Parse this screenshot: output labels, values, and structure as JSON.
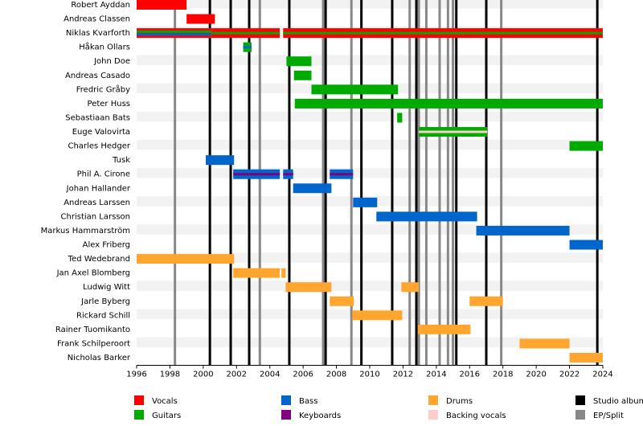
{
  "chart_data": {
    "type": "timeline",
    "xlim": [
      1996,
      2024
    ],
    "xticks": [
      1996,
      1998,
      2000,
      2002,
      2004,
      2006,
      2008,
      2010,
      2012,
      2014,
      2016,
      2018,
      2020,
      2022,
      2024
    ],
    "roles": [
      {
        "name": "Vocals",
        "color": "#ff0000"
      },
      {
        "name": "Guitars",
        "color": "#00aa00"
      },
      {
        "name": "Bass",
        "color": "#0066cc"
      },
      {
        "name": "Keyboards",
        "color": "#800080"
      },
      {
        "name": "Drums",
        "color": "#ffa530"
      },
      {
        "name": "Backing vocals",
        "color": "#ffcccc"
      }
    ],
    "releases": [
      {
        "name": "Studio album",
        "color": "#000000",
        "years": [
          2000.4,
          2001.65,
          2002.76,
          2005.17,
          2007.35,
          2009.5,
          2011.35,
          2012.8,
          2015.2,
          2017.0,
          2023.67
        ]
      },
      {
        "name": "EP/Split",
        "color": "#888888",
        "years": [
          1998.3,
          2003.4,
          2007.2,
          2008.9,
          2012.4,
          2012.95,
          2013.4,
          2014.2,
          2014.7,
          2015.0,
          2017.9
        ]
      }
    ],
    "members": [
      {
        "name": "Robert Ayddan",
        "periods": [
          {
            "start": 1996,
            "end": 1999,
            "roles": [
              "Vocals"
            ]
          }
        ]
      },
      {
        "name": "Andreas Classen",
        "periods": [
          {
            "start": 1999,
            "end": 2000.7,
            "roles": [
              "Vocals"
            ]
          }
        ]
      },
      {
        "name": "Niklas Kvarforth",
        "periods": [
          {
            "start": 1996,
            "end": 2000.5,
            "roles": [
              "Vocals",
              "Guitars",
              "Bass"
            ]
          },
          {
            "start": 2000.5,
            "end": 2004.6,
            "roles": [
              "Vocals",
              "Guitars"
            ]
          },
          {
            "start": 2004.8,
            "end": 2024,
            "roles": [
              "Vocals",
              "Guitars"
            ]
          }
        ]
      },
      {
        "name": "Håkan Ollars",
        "periods": [
          {
            "start": 2002.4,
            "end": 2002.9,
            "roles": [
              "Guitars",
              "Bass"
            ]
          }
        ]
      },
      {
        "name": "John Doe",
        "periods": [
          {
            "start": 2005.0,
            "end": 2006.5,
            "roles": [
              "Guitars"
            ]
          }
        ]
      },
      {
        "name": "Andreas Casado",
        "periods": [
          {
            "start": 2005.45,
            "end": 2006.5,
            "roles": [
              "Guitars"
            ]
          }
        ]
      },
      {
        "name": "Fredric Gråby",
        "periods": [
          {
            "start": 2006.5,
            "end": 2011.7,
            "roles": [
              "Guitars"
            ]
          }
        ]
      },
      {
        "name": "Peter Huss",
        "periods": [
          {
            "start": 2005.5,
            "end": 2024,
            "roles": [
              "Guitars"
            ]
          }
        ]
      },
      {
        "name": "Sebastiaan Bats",
        "periods": [
          {
            "start": 2011.65,
            "end": 2011.95,
            "roles": [
              "Guitars"
            ]
          }
        ]
      },
      {
        "name": "Euge Valovirta",
        "periods": [
          {
            "start": 2012.95,
            "end": 2017.05,
            "roles": [
              "Guitars",
              "Backing vocals"
            ]
          }
        ]
      },
      {
        "name": "Charles Hedger",
        "periods": [
          {
            "start": 2022.0,
            "end": 2024,
            "roles": [
              "Guitars"
            ]
          }
        ]
      },
      {
        "name": "Tusk",
        "periods": [
          {
            "start": 2000.15,
            "end": 2001.85,
            "roles": [
              "Bass"
            ]
          }
        ]
      },
      {
        "name": "Phil A. Cirone",
        "periods": [
          {
            "start": 2001.8,
            "end": 2004.6,
            "roles": [
              "Bass",
              "Keyboards"
            ]
          },
          {
            "start": 2004.8,
            "end": 2005.4,
            "roles": [
              "Bass",
              "Keyboards"
            ]
          },
          {
            "start": 2007.6,
            "end": 2009.0,
            "roles": [
              "Bass",
              "Keyboards"
            ]
          }
        ]
      },
      {
        "name": "Johan Hallander",
        "periods": [
          {
            "start": 2005.4,
            "end": 2007.7,
            "roles": [
              "Bass"
            ]
          }
        ]
      },
      {
        "name": "Andreas Larssen",
        "periods": [
          {
            "start": 2009.0,
            "end": 2010.45,
            "roles": [
              "Bass"
            ]
          }
        ]
      },
      {
        "name": "Christian Larsson",
        "periods": [
          {
            "start": 2010.4,
            "end": 2016.45,
            "roles": [
              "Bass"
            ]
          }
        ]
      },
      {
        "name": "Markus Hammarström",
        "periods": [
          {
            "start": 2016.4,
            "end": 2022.0,
            "roles": [
              "Bass"
            ]
          }
        ]
      },
      {
        "name": "Alex Friberg",
        "periods": [
          {
            "start": 2022.0,
            "end": 2024,
            "roles": [
              "Bass"
            ]
          }
        ]
      },
      {
        "name": "Ted Wedebrand",
        "periods": [
          {
            "start": 1996,
            "end": 2001.85,
            "roles": [
              "Drums"
            ]
          }
        ]
      },
      {
        "name": "Jan Axel Blomberg",
        "periods": [
          {
            "start": 2001.8,
            "end": 2004.6,
            "roles": [
              "Drums"
            ]
          },
          {
            "start": 2004.7,
            "end": 2004.95,
            "roles": [
              "Drums"
            ]
          }
        ]
      },
      {
        "name": "Ludwig Witt",
        "periods": [
          {
            "start": 2004.95,
            "end": 2007.7,
            "roles": [
              "Drums"
            ]
          },
          {
            "start": 2011.9,
            "end": 2012.95,
            "roles": [
              "Drums"
            ]
          }
        ]
      },
      {
        "name": "Jarle Byberg",
        "periods": [
          {
            "start": 2007.6,
            "end": 2009.05,
            "roles": [
              "Drums"
            ]
          },
          {
            "start": 2016.0,
            "end": 2018.0,
            "roles": [
              "Drums"
            ]
          }
        ]
      },
      {
        "name": "Rickard Schill",
        "periods": [
          {
            "start": 2008.95,
            "end": 2011.95,
            "roles": [
              "Drums"
            ]
          }
        ]
      },
      {
        "name": "Rainer Tuomikanto",
        "periods": [
          {
            "start": 2012.9,
            "end": 2016.05,
            "roles": [
              "Drums"
            ]
          }
        ]
      },
      {
        "name": "Frank Schilperoort",
        "periods": [
          {
            "start": 2019.0,
            "end": 2022.0,
            "roles": [
              "Drums"
            ]
          }
        ]
      },
      {
        "name": "Nicholas Barker",
        "periods": [
          {
            "start": 2022.0,
            "end": 2024,
            "roles": [
              "Drums"
            ]
          }
        ]
      }
    ]
  }
}
